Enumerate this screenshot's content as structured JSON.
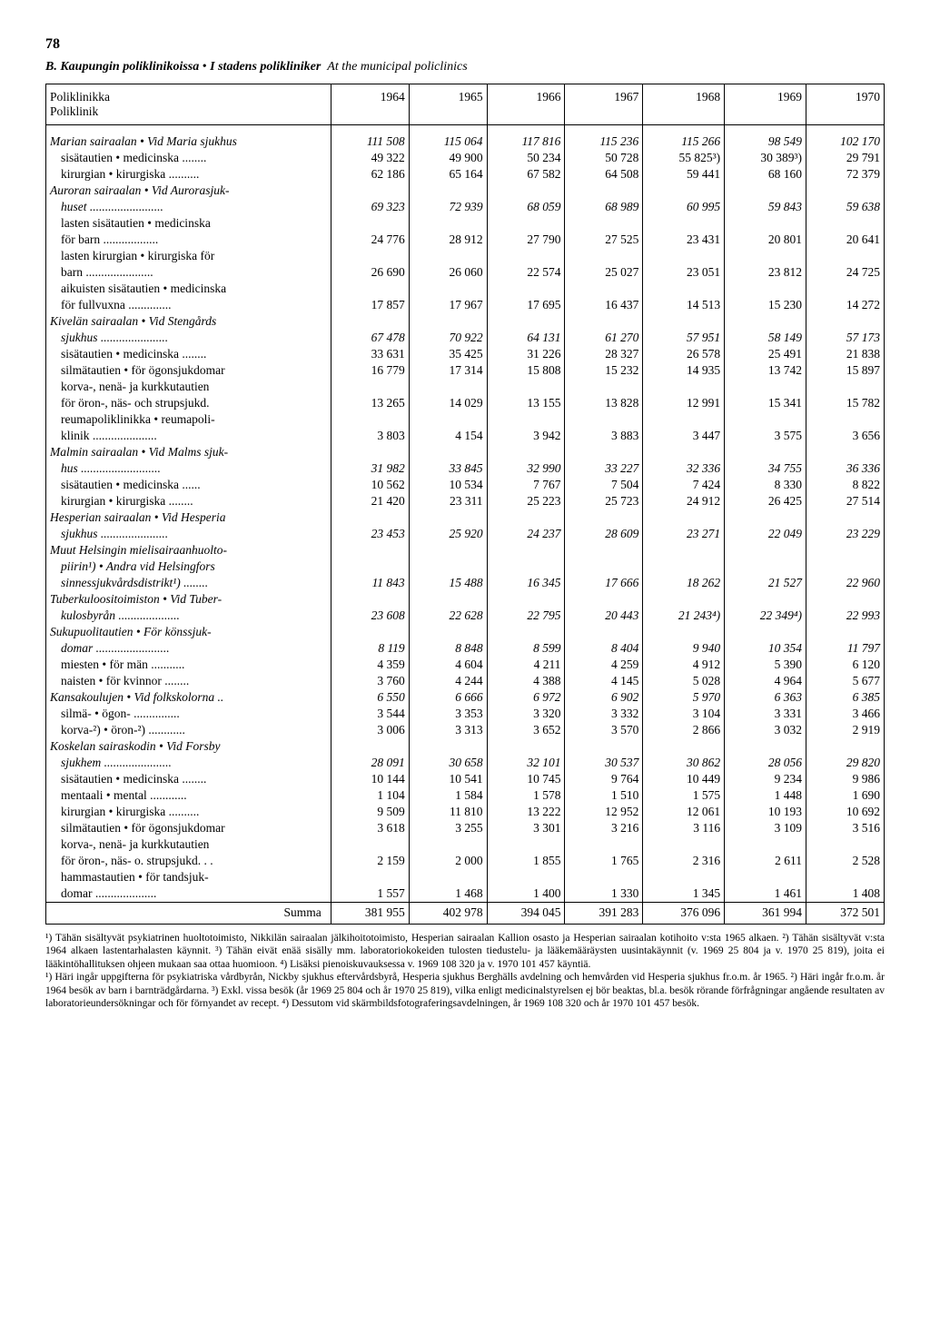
{
  "page_number": "78",
  "title": {
    "prefix": "B.",
    "main_italic": "Kaupungin poliklinikoissa",
    "sep": "•",
    "main_italic2": "I stadens polikliniker",
    "eng": "At the municipal policlinics"
  },
  "header": {
    "col0_a": "Poliklinikka",
    "col0_b": "Poliklinik",
    "years": [
      "1964",
      "1965",
      "1966",
      "1967",
      "1968",
      "1969",
      "1970"
    ]
  },
  "rows": [
    {
      "label": "Marian sairaalan • Vid Maria sjukhus",
      "italic": true,
      "vals": [
        "111 508",
        "115 064",
        "117 816",
        "115 236",
        "115 266",
        "98 549",
        "102 170"
      ]
    },
    {
      "label": "sisätautien • medicinska ........",
      "indent": true,
      "vals": [
        "49 322",
        "49 900",
        "50 234",
        "50 728",
        "55 825³)",
        "30 389³)",
        "29 791"
      ]
    },
    {
      "label": "kirurgian • kirurgiska ..........",
      "indent": true,
      "vals": [
        "62 186",
        "65 164",
        "67 582",
        "64 508",
        "59 441",
        "68 160",
        "72 379"
      ]
    },
    {
      "label": "Auroran sairaalan • Vid Aurorasjuk-",
      "italic": true,
      "vals": [
        "",
        "",
        "",
        "",
        "",
        "",
        ""
      ]
    },
    {
      "label": "huset ........................",
      "italic": true,
      "indent": true,
      "vals": [
        "69 323",
        "72 939",
        "68 059",
        "68 989",
        "60 995",
        "59 843",
        "59 638"
      ]
    },
    {
      "label": "lasten sisätautien • medicinska",
      "indent": true,
      "vals": [
        "",
        "",
        "",
        "",
        "",
        "",
        ""
      ]
    },
    {
      "label": "för barn ..................",
      "indent": true,
      "vals": [
        "24 776",
        "28 912",
        "27 790",
        "27 525",
        "23 431",
        "20 801",
        "20 641"
      ]
    },
    {
      "label": "lasten kirurgian • kirurgiska för",
      "indent": true,
      "vals": [
        "",
        "",
        "",
        "",
        "",
        "",
        ""
      ]
    },
    {
      "label": "barn ......................",
      "indent": true,
      "vals": [
        "26 690",
        "26 060",
        "22 574",
        "25 027",
        "23 051",
        "23 812",
        "24 725"
      ]
    },
    {
      "label": "aikuisten sisätautien • medicinska",
      "indent": true,
      "vals": [
        "",
        "",
        "",
        "",
        "",
        "",
        ""
      ]
    },
    {
      "label": "för fullvuxna ..............",
      "indent": true,
      "vals": [
        "17 857",
        "17 967",
        "17 695",
        "16 437",
        "14 513",
        "15 230",
        "14 272"
      ]
    },
    {
      "label": "Kivelän sairaalan • Vid Stengårds",
      "italic": true,
      "vals": [
        "",
        "",
        "",
        "",
        "",
        "",
        ""
      ]
    },
    {
      "label": "sjukhus ......................",
      "italic": true,
      "indent": true,
      "vals": [
        "67 478",
        "70 922",
        "64 131",
        "61 270",
        "57 951",
        "58 149",
        "57 173"
      ]
    },
    {
      "label": "sisätautien • medicinska ........",
      "indent": true,
      "vals": [
        "33 631",
        "35 425",
        "31 226",
        "28 327",
        "26 578",
        "25 491",
        "21 838"
      ]
    },
    {
      "label": "silmätautien • för ögonsjukdomar",
      "indent": true,
      "vals": [
        "16 779",
        "17 314",
        "15 808",
        "15 232",
        "14 935",
        "13 742",
        "15 897"
      ]
    },
    {
      "label": "korva-, nenä- ja kurkkutautien",
      "indent": true,
      "vals": [
        "",
        "",
        "",
        "",
        "",
        "",
        ""
      ]
    },
    {
      "label": "för öron-, näs- och strupsjukd.",
      "indent": true,
      "vals": [
        "13 265",
        "14 029",
        "13 155",
        "13 828",
        "12 991",
        "15 341",
        "15 782"
      ]
    },
    {
      "label": "reumapoliklinikka • reumapoli-",
      "indent": true,
      "vals": [
        "",
        "",
        "",
        "",
        "",
        "",
        ""
      ]
    },
    {
      "label": "klinik .....................",
      "indent": true,
      "vals": [
        "3 803",
        "4 154",
        "3 942",
        "3 883",
        "3 447",
        "3 575",
        "3 656"
      ]
    },
    {
      "label": "Malmin sairaalan • Vid Malms sjuk-",
      "italic": true,
      "vals": [
        "",
        "",
        "",
        "",
        "",
        "",
        ""
      ]
    },
    {
      "label": "hus ..........................",
      "italic": true,
      "indent": true,
      "vals": [
        "31 982",
        "33 845",
        "32 990",
        "33 227",
        "32 336",
        "34 755",
        "36 336"
      ]
    },
    {
      "label": "sisätautien • medicinska ......",
      "indent": true,
      "vals": [
        "10 562",
        "10 534",
        "7 767",
        "7 504",
        "7 424",
        "8 330",
        "8 822"
      ]
    },
    {
      "label": "kirurgian • kirurgiska ........",
      "indent": true,
      "vals": [
        "21 420",
        "23 311",
        "25 223",
        "25 723",
        "24 912",
        "26 425",
        "27 514"
      ]
    },
    {
      "label": "Hesperian sairaalan • Vid Hesperia",
      "italic": true,
      "vals": [
        "",
        "",
        "",
        "",
        "",
        "",
        ""
      ]
    },
    {
      "label": "sjukhus ......................",
      "italic": true,
      "indent": true,
      "vals": [
        "23 453",
        "25 920",
        "24 237",
        "28 609",
        "23 271",
        "22 049",
        "23 229"
      ]
    },
    {
      "label": "Muut Helsingin mielisairaanhuolto-",
      "italic": true,
      "vals": [
        "",
        "",
        "",
        "",
        "",
        "",
        ""
      ]
    },
    {
      "label": "piirin¹) • Andra vid Helsingfors",
      "italic": true,
      "indent": true,
      "vals": [
        "",
        "",
        "",
        "",
        "",
        "",
        ""
      ]
    },
    {
      "label": "sinnessjukvårdsdistrikt¹) ........",
      "italic": true,
      "indent": true,
      "vals": [
        "11 843",
        "15 488",
        "16 345",
        "17 666",
        "18 262",
        "21 527",
        "22 960"
      ]
    },
    {
      "label": "Tuberkuloositoimiston • Vid Tuber-",
      "italic": true,
      "vals": [
        "",
        "",
        "",
        "",
        "",
        "",
        ""
      ]
    },
    {
      "label": "kulosbyrån ....................",
      "italic": true,
      "indent": true,
      "vals": [
        "23 608",
        "22 628",
        "22 795",
        "20 443",
        "21 243⁴)",
        "22 349⁴)",
        "22 993"
      ]
    },
    {
      "label": "Sukupuolitautien • För könssjuk-",
      "italic": true,
      "vals": [
        "",
        "",
        "",
        "",
        "",
        "",
        ""
      ]
    },
    {
      "label": "domar ........................",
      "italic": true,
      "indent": true,
      "vals": [
        "8 119",
        "8 848",
        "8 599",
        "8 404",
        "9 940",
        "10 354",
        "11 797"
      ]
    },
    {
      "label": "miesten • för män ...........",
      "indent": true,
      "vals": [
        "4 359",
        "4 604",
        "4 211",
        "4 259",
        "4 912",
        "5 390",
        "6 120"
      ]
    },
    {
      "label": "naisten • för kvinnor ........",
      "indent": true,
      "vals": [
        "3 760",
        "4 244",
        "4 388",
        "4 145",
        "5 028",
        "4 964",
        "5 677"
      ]
    },
    {
      "label": "Kansakoulujen • Vid folkskolorna ..",
      "italic": true,
      "vals": [
        "6 550",
        "6 666",
        "6 972",
        "6 902",
        "5 970",
        "6 363",
        "6 385"
      ]
    },
    {
      "label": "silmä- • ögon- ...............",
      "indent": true,
      "vals": [
        "3 544",
        "3 353",
        "3 320",
        "3 332",
        "3 104",
        "3 331",
        "3 466"
      ]
    },
    {
      "label": "korva-²) • öron-²) ............",
      "indent": true,
      "vals": [
        "3 006",
        "3 313",
        "3 652",
        "3 570",
        "2 866",
        "3 032",
        "2 919"
      ]
    },
    {
      "label": "Koskelan sairaskodin • Vid Forsby",
      "italic": true,
      "vals": [
        "",
        "",
        "",
        "",
        "",
        "",
        ""
      ]
    },
    {
      "label": "sjukhem ......................",
      "italic": true,
      "indent": true,
      "vals": [
        "28 091",
        "30 658",
        "32 101",
        "30 537",
        "30 862",
        "28 056",
        "29 820"
      ]
    },
    {
      "label": "sisätautien • medicinska ........",
      "indent": true,
      "vals": [
        "10 144",
        "10 541",
        "10 745",
        "9 764",
        "10 449",
        "9 234",
        "9 986"
      ]
    },
    {
      "label": "mentaali • mental ............",
      "indent": true,
      "vals": [
        "1 104",
        "1 584",
        "1 578",
        "1 510",
        "1 575",
        "1 448",
        "1 690"
      ]
    },
    {
      "label": "kirurgian • kirurgiska ..........",
      "indent": true,
      "vals": [
        "9 509",
        "11 810",
        "13 222",
        "12 952",
        "12 061",
        "10 193",
        "10 692"
      ]
    },
    {
      "label": "silmätautien • för ögonsjukdomar",
      "indent": true,
      "vals": [
        "3 618",
        "3 255",
        "3 301",
        "3 216",
        "3 116",
        "3 109",
        "3 516"
      ]
    },
    {
      "label": "korva-, nenä- ja kurkkutautien",
      "indent": true,
      "vals": [
        "",
        "",
        "",
        "",
        "",
        "",
        ""
      ]
    },
    {
      "label": "för öron-, näs- o. strupsjukd. . .",
      "indent": true,
      "vals": [
        "2 159",
        "2 000",
        "1 855",
        "1 765",
        "2 316",
        "2 611",
        "2 528"
      ]
    },
    {
      "label": "hammastautien • för tandsjuk-",
      "indent": true,
      "vals": [
        "",
        "",
        "",
        "",
        "",
        "",
        ""
      ]
    },
    {
      "label": "domar ....................",
      "indent": true,
      "vals": [
        "1 557",
        "1 468",
        "1 400",
        "1 330",
        "1 345",
        "1 461",
        "1 408"
      ]
    }
  ],
  "sum": {
    "label": "Summa",
    "vals": [
      "381 955",
      "402 978",
      "394 045",
      "391 283",
      "376 096",
      "361 994",
      "372 501"
    ]
  },
  "footnote_fi": "¹) Tähän sisältyvät psykiatrinen huoltotoimisto, Nikkilän sairaalan jälkihoitotoimisto, Hesperian sairaalan Kallion osasto ja Hesperian sairaalan kotihoito v:sta 1965 alkaen. ²) Tähän sisältyvät v:sta 1964 alkaen lastentarhalasten käynnit. ³) Tähän eivät enää sisälly mm. laboratoriokokeiden tulosten tiedustelu- ja lääkemääräysten uusintakäynnit (v. 1969 25 804 ja v. 1970 25 819), joita ei lääkintöhallituksen ohjeen mukaan saa ottaa huomioon. ⁴) Lisäksi pienoiskuvauksessa v. 1969 108 320 ja v. 1970 101 457 käyntiä.",
  "footnote_sv": "¹) Häri ingår uppgifterna för psykiatriska vårdbyrån, Nickby sjukhus eftervårdsbyrå, Hesperia sjukhus Berghälls avdelning och hemvården vid Hesperia sjukhus fr.o.m. år 1965. ²) Häri ingår fr.o.m. år 1964 besök av barn i barnträdgårdarna. ³) Exkl. vissa besök (år 1969 25 804 och år 1970 25 819), vilka enligt medicinalstyrelsen ej bör beaktas, bl.a. besök rörande förfrågningar angående resultaten av laboratorieundersökningar och för förnyandet av recept. ⁴) Dessutom vid skärmbildsfotograferingsavdelningen, år 1969 108 320 och år 1970 101 457 besök."
}
